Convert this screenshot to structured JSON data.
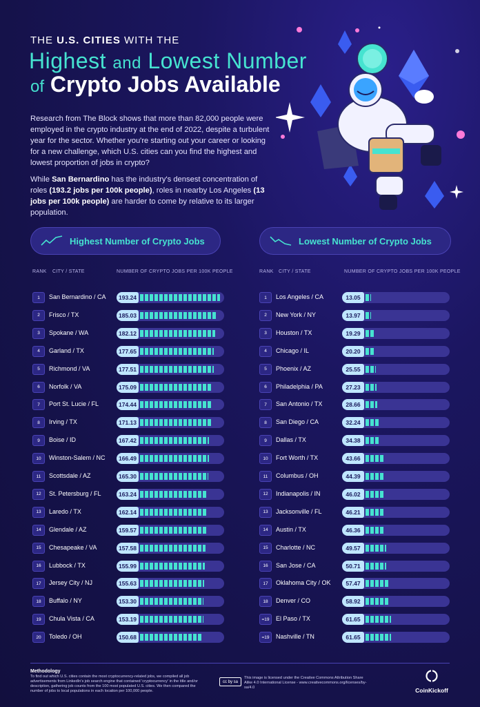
{
  "title": {
    "line1_pre": "THE ",
    "line1_bold": "U.S. CITIES",
    "line1_post": " WITH THE",
    "line2_a": "Highest",
    "line2_and": "and",
    "line2_b": "Lowest Number",
    "line3_of": "of",
    "line3_b": "Crypto Jobs Available"
  },
  "intro": {
    "p1": "Research from The Block shows that more than 82,000 people were employed in the crypto industry at the end of 2022, despite a turbulent year for the sector. Whether you're starting out your career or looking for a new challenge, which U.S. cities can you find the highest and lowest proportion of jobs in crypto?",
    "p2_a": "While ",
    "p2_b": "San Bernardino",
    "p2_c": " has the industry's densest concentration of roles ",
    "p2_d": "(193.2 jobs per 100k people)",
    "p2_e": ", roles in nearby Los Angeles ",
    "p2_f": "(13 jobs per 100k people)",
    "p2_g": " are harder to come by relative to its larger population."
  },
  "colors": {
    "accent": "#46e3d0",
    "value_badge": "#bfe6ff",
    "track": "#3a3494",
    "panel": "#2c2784"
  },
  "chart_data": [
    {
      "type": "bar",
      "title": "Highest Number of Crypto Jobs",
      "headers": {
        "rank": "RANK",
        "city": "CITY / STATE",
        "value": "NUMBER OF CRYPTO JOBS PER 100K PEOPLE"
      },
      "xlim": [
        0,
        200
      ],
      "rows": [
        {
          "rank": "1",
          "city": "San Bernardino / CA",
          "value": 193.24,
          "label": "193.24"
        },
        {
          "rank": "2",
          "city": "Frisco / TX",
          "value": 185.03,
          "label": "185.03"
        },
        {
          "rank": "3",
          "city": "Spokane / WA",
          "value": 182.12,
          "label": "182.12"
        },
        {
          "rank": "4",
          "city": "Garland / TX",
          "value": 177.65,
          "label": "177.65"
        },
        {
          "rank": "5",
          "city": "Richmond / VA",
          "value": 177.51,
          "label": "177.51"
        },
        {
          "rank": "6",
          "city": "Norfolk / VA",
          "value": 175.09,
          "label": "175.09"
        },
        {
          "rank": "7",
          "city": "Port St. Lucie / FL",
          "value": 174.44,
          "label": "174.44"
        },
        {
          "rank": "8",
          "city": "Irving / TX",
          "value": 171.13,
          "label": "171.13"
        },
        {
          "rank": "9",
          "city": "Boise / ID",
          "value": 167.42,
          "label": "167.42"
        },
        {
          "rank": "10",
          "city": "Winston-Salem / NC",
          "value": 166.49,
          "label": "166.49"
        },
        {
          "rank": "11",
          "city": "Scottsdale / AZ",
          "value": 165.3,
          "label": "165.30"
        },
        {
          "rank": "12",
          "city": "St. Petersburg / FL",
          "value": 163.24,
          "label": "163.24"
        },
        {
          "rank": "13",
          "city": "Laredo / TX",
          "value": 162.14,
          "label": "162.14"
        },
        {
          "rank": "14",
          "city": "Glendale / AZ",
          "value": 159.57,
          "label": "159.57"
        },
        {
          "rank": "15",
          "city": "Chesapeake / VA",
          "value": 157.58,
          "label": "157.58"
        },
        {
          "rank": "16",
          "city": "Lubbock / TX",
          "value": 155.99,
          "label": "155.99"
        },
        {
          "rank": "17",
          "city": "Jersey City / NJ",
          "value": 155.63,
          "label": "155.63"
        },
        {
          "rank": "18",
          "city": "Buffalo / NY",
          "value": 153.3,
          "label": "153.30"
        },
        {
          "rank": "19",
          "city": "Chula Vista / CA",
          "value": 153.19,
          "label": "153.19"
        },
        {
          "rank": "20",
          "city": "Toledo / OH",
          "value": 150.68,
          "label": "150.68"
        }
      ]
    },
    {
      "type": "bar",
      "title": "Lowest Number of Crypto Jobs",
      "headers": {
        "rank": "RANK",
        "city": "CITY / STATE",
        "value": "NUMBER OF CRYPTO JOBS PER 100K PEOPLE"
      },
      "xlim": [
        0,
        200
      ],
      "rows": [
        {
          "rank": "1",
          "city": "Los Angeles / CA",
          "value": 13.05,
          "label": "13.05"
        },
        {
          "rank": "2",
          "city": "New York / NY",
          "value": 13.97,
          "label": "13.97"
        },
        {
          "rank": "3",
          "city": "Houston / TX",
          "value": 19.29,
          "label": "19.29"
        },
        {
          "rank": "4",
          "city": "Chicago / IL",
          "value": 20.2,
          "label": "20.20"
        },
        {
          "rank": "5",
          "city": "Phoenix / AZ",
          "value": 25.55,
          "label": "25.55"
        },
        {
          "rank": "6",
          "city": "Philadelphia / PA",
          "value": 27.23,
          "label": "27.23"
        },
        {
          "rank": "7",
          "city": "San Antonio / TX",
          "value": 28.66,
          "label": "28.66"
        },
        {
          "rank": "8",
          "city": "San Diego / CA",
          "value": 32.24,
          "label": "32.24"
        },
        {
          "rank": "9",
          "city": "Dallas / TX",
          "value": 34.38,
          "label": "34.38"
        },
        {
          "rank": "10",
          "city": "Fort Worth / TX",
          "value": 43.66,
          "label": "43.66"
        },
        {
          "rank": "11",
          "city": "Columbus / OH",
          "value": 44.39,
          "label": "44.39"
        },
        {
          "rank": "12",
          "city": "Indianapolis / IN",
          "value": 46.02,
          "label": "46.02"
        },
        {
          "rank": "13",
          "city": "Jacksonville / FL",
          "value": 46.21,
          "label": "46.21"
        },
        {
          "rank": "14",
          "city": "Austin / TX",
          "value": 46.36,
          "label": "46.36"
        },
        {
          "rank": "15",
          "city": "Charlotte / NC",
          "value": 49.57,
          "label": "49.57"
        },
        {
          "rank": "16",
          "city": "San Jose / CA",
          "value": 50.71,
          "label": "50.71"
        },
        {
          "rank": "17",
          "city": "Oklahoma City / OK",
          "value": 57.47,
          "label": "57.47"
        },
        {
          "rank": "18",
          "city": "Denver / CO",
          "value": 58.92,
          "label": "58.92"
        },
        {
          "rank": "=19",
          "city": "El Paso / TX",
          "value": 61.65,
          "label": "61.65"
        },
        {
          "rank": "=19",
          "city": "Nashville / TN",
          "value": 61.65,
          "label": "61.65"
        }
      ]
    }
  ],
  "footer": {
    "method_title": "Methodology",
    "method_text": "To find out which U.S. cities contain the most cryptocurrency-related jobs, we compiled all job advertisements from LinkedIn's job search engine that contained 'cryptocurrency' in the title and/or description, gathering job counts from the 100 most populated U.S. cities. We then compared the number of jobs to local populations in each location per 100,000 people.",
    "cc_badge": "cc by sa",
    "license": "This image is licensed under the Creative Commons Attribution Share Alike 4.0 International License - www.creativecommons.org/licenses/by-sa/4.0",
    "brand": "CoinKickoff"
  }
}
